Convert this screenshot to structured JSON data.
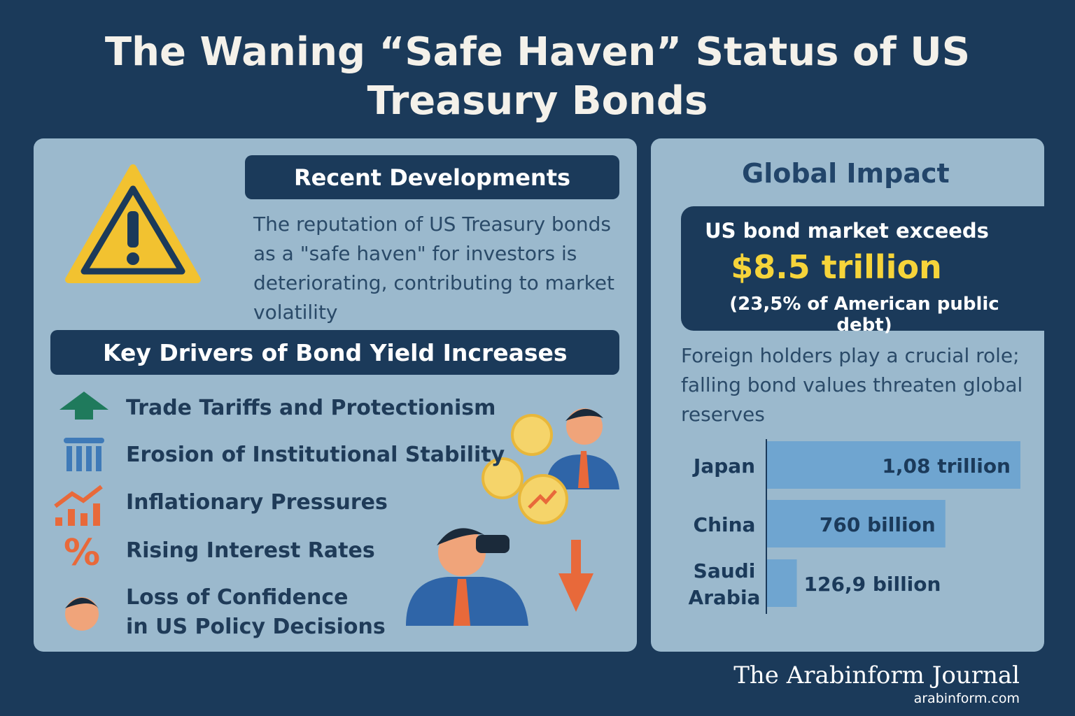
{
  "header": {
    "title": "The Waning “Safe Haven” Status of US Treasury Bonds"
  },
  "recent_developments": {
    "heading": "Recent Developments",
    "text": "The reputation of US Treasury bonds as a \"safe haven\" for investors is deteriorating, contributing to market volatility"
  },
  "key_drivers": {
    "heading": "Key Drivers of Bond Yield Increases",
    "items": [
      [
        "Trade Tariffs and Protectionism"
      ],
      [
        "Erosion of Institutional Stability"
      ],
      [
        "Inflationary Pressures"
      ],
      [
        "Rising Interest Rates"
      ],
      [
        "Loss of Confidence",
        "in US Policy Decisions"
      ]
    ]
  },
  "global_impact": {
    "heading": "Global Impact",
    "highlight": {
      "intro": "US bond market exceeds",
      "amount": "$8.5 trillion",
      "note": "(23,5% of American public debt)"
    },
    "description": "Foreign holders play a crucial role; falling bond values threaten global reserves"
  },
  "chart_data": {
    "type": "bar",
    "orientation": "horizontal",
    "categories": [
      "Japan",
      "China",
      "Saudi Arabia"
    ],
    "values": [
      1080,
      760,
      126.9
    ],
    "value_labels": [
      "1,08 trillion",
      "760 billion",
      "126,9 billion"
    ],
    "color": "#6fa5d0"
  },
  "footer": {
    "publisher": "The Arabinform Journal",
    "url": "arabinform.com"
  }
}
